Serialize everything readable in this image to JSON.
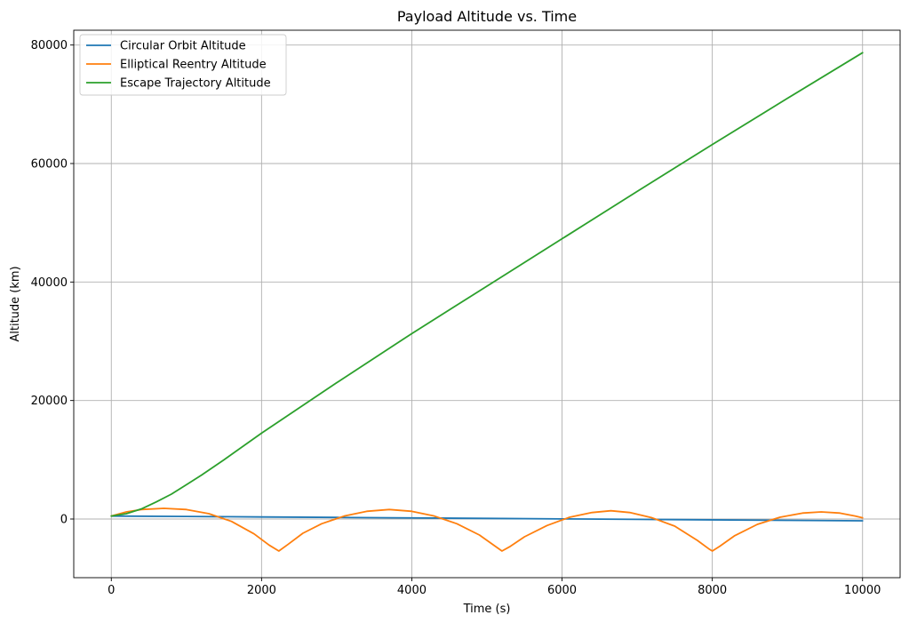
{
  "chart_data": {
    "type": "line",
    "title": "Payload Altitude vs. Time",
    "xlabel": "Time (s)",
    "ylabel": "Altitude (km)",
    "xlim": [
      -500,
      10500
    ],
    "ylim": [
      -9900,
      82500
    ],
    "xticks": [
      0,
      2000,
      4000,
      6000,
      8000,
      10000
    ],
    "yticks": [
      0,
      20000,
      40000,
      60000,
      80000
    ],
    "grid": true,
    "legend_position": "top-left",
    "series": [
      {
        "name": "Circular Orbit Altitude",
        "color": "#1f77b4",
        "x": [
          0,
          1000,
          2000,
          3000,
          4000,
          5000,
          6000,
          7000,
          8000,
          9000,
          10000
        ],
        "y": [
          500,
          430,
          350,
          270,
          190,
          100,
          20,
          -60,
          -140,
          -220,
          -300
        ]
      },
      {
        "name": "Elliptical Reentry Altitude",
        "color": "#ff7f0e",
        "x": [
          0,
          200,
          400,
          700,
          1000,
          1300,
          1600,
          1900,
          2100,
          2230,
          2350,
          2550,
          2800,
          3100,
          3400,
          3700,
          4000,
          4300,
          4600,
          4900,
          5100,
          5200,
          5300,
          5500,
          5800,
          6100,
          6400,
          6650,
          6900,
          7200,
          7500,
          7800,
          7950,
          8000,
          8100,
          8300,
          8600,
          8900,
          9200,
          9450,
          9700,
          9900,
          10000
        ],
        "y": [
          500,
          1200,
          1600,
          1800,
          1600,
          900,
          -400,
          -2500,
          -4400,
          -5400,
          -4300,
          -2400,
          -800,
          500,
          1300,
          1600,
          1300,
          500,
          -800,
          -2700,
          -4500,
          -5400,
          -4700,
          -3000,
          -1100,
          300,
          1100,
          1400,
          1100,
          200,
          -1200,
          -3600,
          -5000,
          -5400,
          -4600,
          -2800,
          -900,
          300,
          1000,
          1200,
          1000,
          500,
          200
        ]
      },
      {
        "name": "Escape Trajectory Altitude",
        "color": "#2ca02c",
        "x": [
          0,
          200,
          400,
          600,
          800,
          1000,
          1200,
          1500,
          2000,
          3000,
          4000,
          5000,
          6000,
          7000,
          8000,
          9000,
          10000
        ],
        "y": [
          500,
          900,
          1700,
          2900,
          4200,
          5800,
          7400,
          10000,
          14500,
          23000,
          31300,
          39300,
          47300,
          55300,
          63200,
          71000,
          78700
        ]
      }
    ]
  }
}
